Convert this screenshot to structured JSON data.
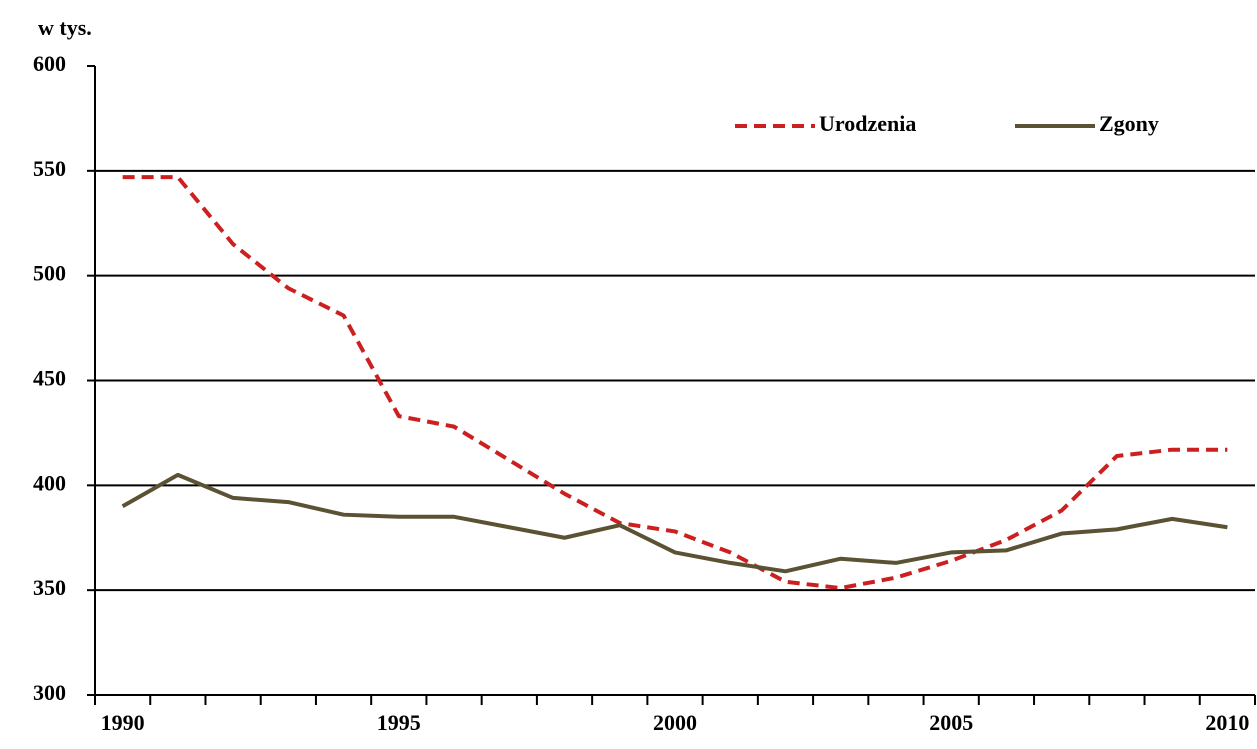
{
  "chart_data": {
    "type": "line",
    "y_label": "w tys.",
    "categories": [
      "1990",
      null,
      null,
      null,
      null,
      "1995",
      null,
      null,
      null,
      null,
      "2000",
      null,
      null,
      null,
      null,
      "2005",
      null,
      null,
      null,
      null,
      "2010"
    ],
    "series": [
      {
        "name": "Urodzenia",
        "color": "#cc2020",
        "dashed": true,
        "values": [
          547,
          547,
          515,
          494,
          481,
          433,
          428,
          412,
          396,
          382,
          378,
          368,
          354,
          351,
          356,
          364,
          374,
          388,
          414,
          417,
          417
        ]
      },
      {
        "name": "Zgony",
        "color": "#5a5232",
        "dashed": false,
        "values": [
          390,
          405,
          394,
          392,
          386,
          385,
          385,
          380,
          375,
          381,
          368,
          363,
          359,
          365,
          363,
          368,
          369,
          377,
          379,
          384,
          380
        ]
      }
    ],
    "ylim": [
      300,
      600
    ],
    "yticks": [
      300,
      350,
      400,
      450,
      500,
      550,
      600
    ],
    "grid": true,
    "legend": "top-right"
  }
}
